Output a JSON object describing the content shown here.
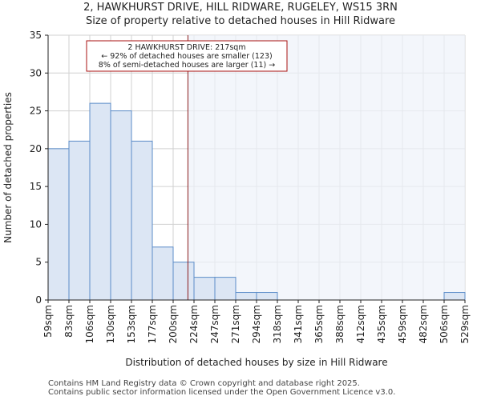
{
  "header": {
    "title": "2, HAWKHURST DRIVE, HILL RIDWARE, RUGELEY, WS15 3RN",
    "subtitle": "Size of property relative to detached houses in Hill Ridware"
  },
  "footer": {
    "line1": "Contains HM Land Registry data © Crown copyright and database right 2025.",
    "line2": "Contains public sector information licensed under the Open Government Licence v3.0."
  },
  "colors": {
    "bar_fill": "#dce6f4",
    "bar_stroke": "#5b8cc8",
    "highlight_fill": "#eef2fa",
    "marker_line": "#8b1a1a",
    "annotation_border": "#aa1111",
    "grid": "#d0d0d0"
  },
  "chart_data": {
    "type": "bar",
    "title": "2, HAWKHURST DRIVE, HILL RIDWARE, RUGELEY, WS15 3RN",
    "subtitle": "Size of property relative to detached houses in Hill Ridware",
    "xlabel": "Distribution of detached houses by size in Hill Ridware",
    "ylabel": "Number of detached properties",
    "bin_edges_sqm": [
      59,
      83,
      106,
      130,
      153,
      177,
      200,
      224,
      247,
      271,
      294,
      318,
      341,
      365,
      388,
      412,
      435,
      459,
      482,
      506,
      529
    ],
    "x_tick_labels": [
      "59sqm",
      "83sqm",
      "106sqm",
      "130sqm",
      "153sqm",
      "177sqm",
      "200sqm",
      "224sqm",
      "247sqm",
      "271sqm",
      "294sqm",
      "318sqm",
      "341sqm",
      "365sqm",
      "388sqm",
      "412sqm",
      "435sqm",
      "459sqm",
      "482sqm",
      "506sqm",
      "529sqm"
    ],
    "values": [
      20,
      21,
      26,
      25,
      21,
      7,
      5,
      3,
      3,
      1,
      1,
      0,
      0,
      0,
      0,
      0,
      0,
      0,
      0,
      1
    ],
    "ylim": [
      0,
      35
    ],
    "y_ticks": [
      0,
      5,
      10,
      15,
      20,
      25,
      30,
      35
    ],
    "grid": true,
    "property_marker_sqm": 217,
    "annotation": {
      "line1": "2 HAWKHURST DRIVE: 217sqm",
      "line2": "← 92% of detached houses are smaller (123)",
      "line3": "8% of semi-detached houses are larger (11) →"
    }
  }
}
